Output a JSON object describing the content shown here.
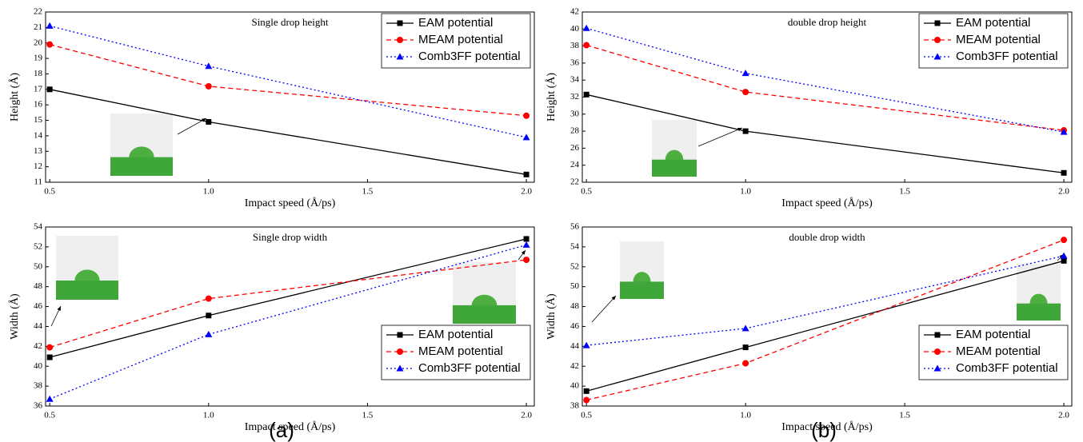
{
  "panels": [
    "(a)",
    "(b)"
  ],
  "chart_data": [
    {
      "type": "line",
      "title": "Single drop height",
      "xlabel": "Impact speed (Å/ps)",
      "ylabel": "Height (Å)",
      "x": [
        0.5,
        1.0,
        2.0
      ],
      "xlim": [
        0.487,
        2.025
      ],
      "xticks": [
        0.5,
        {
          "value": 1,
          "label": "1.0"
        },
        1.5,
        {
          "value": 2,
          "label": "2.0"
        }
      ],
      "ylim": [
        11,
        22
      ],
      "yticks": [
        11,
        12,
        13,
        14,
        15,
        16,
        17,
        18,
        19,
        20,
        21,
        22
      ],
      "legend": "upper right",
      "series": [
        {
          "name": "EAM potential",
          "color": "#000000",
          "dash": "solid",
          "marker": "square",
          "values": [
            17.0,
            14.9,
            11.5
          ]
        },
        {
          "name": "MEAM potential",
          "color": "#ff0000",
          "dash": "dashed",
          "marker": "circle",
          "values": [
            19.9,
            17.2,
            15.3
          ]
        },
        {
          "name": "Comb3FF potential",
          "color": "#0000ff",
          "dash": "dotted",
          "marker": "triangle",
          "values": [
            21.1,
            18.5,
            13.9
          ]
        }
      ]
    },
    {
      "type": "line",
      "title": "double drop height",
      "xlabel": "Impact speed (Å/ps)",
      "ylabel": "Height (Å)",
      "x": [
        0.5,
        1.0,
        2.0
      ],
      "xlim": [
        0.487,
        2.025
      ],
      "xticks": [
        0.5,
        {
          "value": 1,
          "label": "1.0"
        },
        1.5,
        {
          "value": 2,
          "label": "2.0"
        }
      ],
      "ylim": [
        22,
        42
      ],
      "yticks": [
        22,
        24,
        26,
        28,
        30,
        32,
        34,
        36,
        38,
        40,
        42
      ],
      "legend": "upper right",
      "series": [
        {
          "name": "EAM potential",
          "color": "#000000",
          "dash": "solid",
          "marker": "square",
          "values": [
            32.3,
            28.0,
            23.1
          ]
        },
        {
          "name": "MEAM potential",
          "color": "#ff0000",
          "dash": "dashed",
          "marker": "circle",
          "values": [
            38.1,
            32.6,
            28.1
          ]
        },
        {
          "name": "Comb3FF potential",
          "color": "#0000ff",
          "dash": "dotted",
          "marker": "triangle",
          "values": [
            40.1,
            34.8,
            27.9
          ]
        }
      ]
    },
    {
      "type": "line",
      "title": "Single drop width",
      "xlabel": "Impact speed (Å/ps)",
      "ylabel": "Width (Å)",
      "x": [
        0.5,
        1.0,
        2.0
      ],
      "xlim": [
        0.487,
        2.025
      ],
      "xticks": [
        0.5,
        {
          "value": 1,
          "label": "1.0"
        },
        1.5,
        {
          "value": 2,
          "label": "2.0"
        }
      ],
      "ylim": [
        36,
        54
      ],
      "yticks": [
        36,
        38,
        40,
        42,
        44,
        46,
        48,
        50,
        52,
        54
      ],
      "legend": "lower right",
      "series": [
        {
          "name": "EAM potential",
          "color": "#000000",
          "dash": "solid",
          "marker": "square",
          "values": [
            40.9,
            45.1,
            52.8
          ]
        },
        {
          "name": "MEAM potential",
          "color": "#ff0000",
          "dash": "dashed",
          "marker": "circle",
          "values": [
            41.9,
            46.8,
            50.7
          ]
        },
        {
          "name": "Comb3FF potential",
          "color": "#0000ff",
          "dash": "dotted",
          "marker": "triangle",
          "values": [
            36.7,
            43.2,
            52.2
          ]
        }
      ]
    },
    {
      "type": "line",
      "title": "double drop width",
      "xlabel": "Impact speed (Å/ps)",
      "ylabel": "Width (Å)",
      "x": [
        0.5,
        1.0,
        2.0
      ],
      "xlim": [
        0.487,
        2.025
      ],
      "xticks": [
        0.5,
        {
          "value": 1,
          "label": "1.0"
        },
        1.5,
        {
          "value": 2,
          "label": "2.0"
        }
      ],
      "ylim": [
        38,
        56
      ],
      "yticks": [
        38,
        40,
        42,
        44,
        46,
        48,
        50,
        52,
        54,
        56
      ],
      "legend": "lower right",
      "series": [
        {
          "name": "EAM potential",
          "color": "#000000",
          "dash": "solid",
          "marker": "square",
          "values": [
            39.5,
            43.9,
            52.6
          ]
        },
        {
          "name": "MEAM potential",
          "color": "#ff0000",
          "dash": "dashed",
          "marker": "circle",
          "values": [
            38.6,
            42.3,
            54.7
          ]
        },
        {
          "name": "Comb3FF potential",
          "color": "#0000ff",
          "dash": "dotted",
          "marker": "triangle",
          "values": [
            44.1,
            45.8,
            53.1
          ]
        }
      ]
    }
  ]
}
